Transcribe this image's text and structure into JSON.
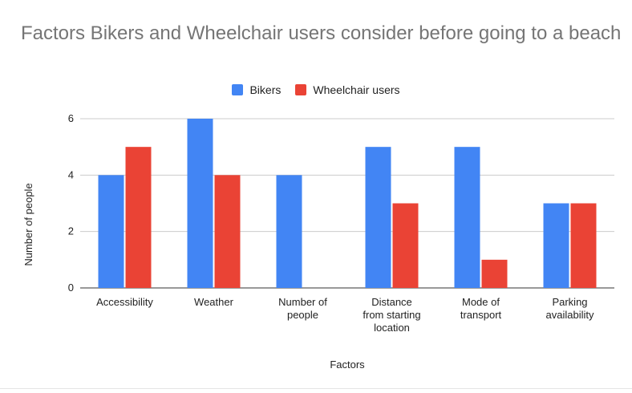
{
  "chart_data": {
    "type": "bar",
    "title": "Factors Bikers and Wheelchair users consider before going to a beach",
    "categories": [
      [
        "Accessibility"
      ],
      [
        "Weather"
      ],
      [
        "Number of",
        "people"
      ],
      [
        "Distance",
        "from starting",
        "location"
      ],
      [
        "Mode of",
        "transport"
      ],
      [
        "Parking",
        "availability"
      ]
    ],
    "series": [
      {
        "name": "Bikers",
        "color": "#4285f4",
        "values": [
          4,
          6,
          4,
          5,
          5,
          3
        ]
      },
      {
        "name": "Wheelchair users",
        "color": "#ea4335",
        "values": [
          5,
          4,
          0,
          3,
          1,
          3
        ]
      }
    ],
    "xlabel": "Factors",
    "ylabel": "Number of people",
    "ylim": [
      0,
      6
    ],
    "yticks": [
      0,
      2,
      4,
      6
    ],
    "grid": true,
    "legend_position": "top"
  }
}
